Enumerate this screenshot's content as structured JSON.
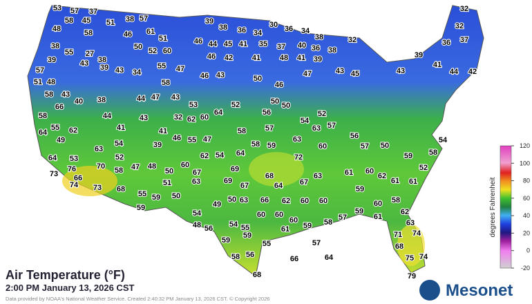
{
  "map": {
    "title": "Air Temperature (°F)",
    "timestamp": "2:00 PM January 13, 2026 CST",
    "credit": "Data provided by NOAA's National Weather Service. Created 2:40:32 PM January 13, 2026 CST. © Copyright 2026",
    "legend": {
      "label": "degrees Fahrenheit",
      "ticks": [
        120,
        100,
        80,
        60,
        40,
        20,
        0,
        -20
      ]
    },
    "logo": "Mesonet",
    "stations": [
      53,
      57,
      37,
      58,
      45,
      51,
      38,
      57,
      39,
      32,
      48,
      58,
      46,
      61,
      51,
      38,
      36,
      34,
      30,
      36,
      34,
      38,
      32,
      32,
      38,
      55,
      27,
      38,
      39,
      43,
      39,
      50,
      52,
      60,
      46,
      44,
      45,
      41,
      35,
      37,
      40,
      36,
      38,
      36,
      37,
      39,
      43,
      34,
      55,
      47,
      46,
      42,
      41,
      48,
      41,
      39,
      57,
      51,
      48,
      58,
      43,
      40,
      38,
      44,
      47,
      43,
      58,
      46,
      43,
      50,
      46,
      47,
      43,
      45,
      43,
      41,
      44,
      42,
      58,
      66,
      64,
      55,
      62,
      44,
      41,
      43,
      41,
      32,
      53,
      62,
      60,
      64,
      52,
      56,
      50,
      50,
      54,
      52,
      63,
      57,
      58,
      57,
      49,
      63,
      54,
      39,
      46,
      55,
      47,
      62,
      54,
      64,
      58,
      59,
      63,
      60,
      56,
      57,
      50,
      59,
      58,
      54,
      64,
      53,
      76,
      73,
      66,
      74,
      73,
      70,
      58,
      47,
      48,
      52,
      50,
      60,
      67,
      69,
      72,
      68,
      64,
      67,
      63,
      61,
      60,
      62,
      61,
      52,
      61,
      69,
      67,
      68,
      55,
      59,
      50,
      51,
      63,
      50,
      63,
      66,
      62,
      60,
      60,
      59,
      60,
      58,
      59,
      59,
      54,
      49,
      48,
      56,
      54,
      60,
      60,
      60,
      59,
      58,
      61,
      62,
      63,
      74,
      71,
      68,
      75,
      74,
      79,
      57,
      55,
      61,
      59,
      59,
      55,
      57,
      58,
      56,
      68,
      66,
      64
    ]
  }
}
